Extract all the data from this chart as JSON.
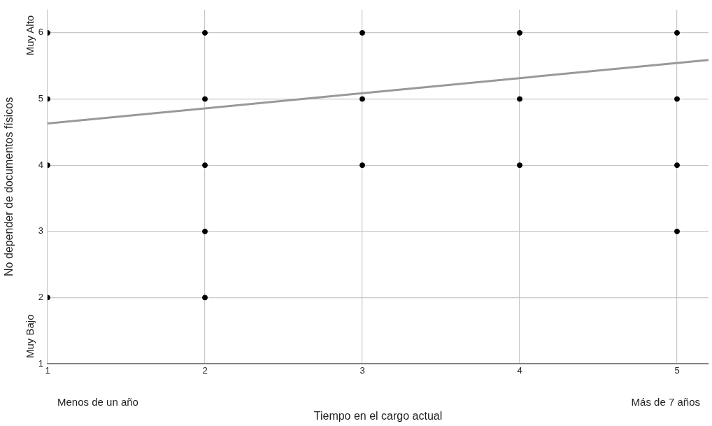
{
  "chart_data": {
    "type": "scatter",
    "xlabel": "Tiempo en el cargo actual",
    "ylabel": "No depender de documentos físicos",
    "xlim": [
      1,
      5.2
    ],
    "xticks": [
      1,
      2,
      3,
      4,
      5
    ],
    "ylim": [
      1,
      6.35
    ],
    "yticks": [
      1,
      2,
      3,
      4,
      5,
      6
    ],
    "grid": true,
    "marker": "circle",
    "series": [
      {
        "color": "#000000",
        "x": [
          1,
          1,
          1,
          1,
          2,
          2,
          2,
          2,
          2,
          3,
          3,
          3,
          4,
          4,
          4,
          5,
          5,
          5,
          5
        ],
        "values": [
          6,
          5,
          4,
          2,
          6,
          5,
          4,
          3,
          2,
          6,
          5,
          4,
          6,
          5,
          4,
          6,
          5,
          4,
          3
        ]
      },
      {
        "type": "line",
        "color": "#999999",
        "marker": "none",
        "x": [
          1,
          5.2
        ],
        "values": [
          4.63,
          5.59
        ]
      }
    ],
    "annotations": [
      "Muy Alto",
      "Muy Bajo",
      "Menos de un año",
      "Más de 7 años"
    ]
  }
}
